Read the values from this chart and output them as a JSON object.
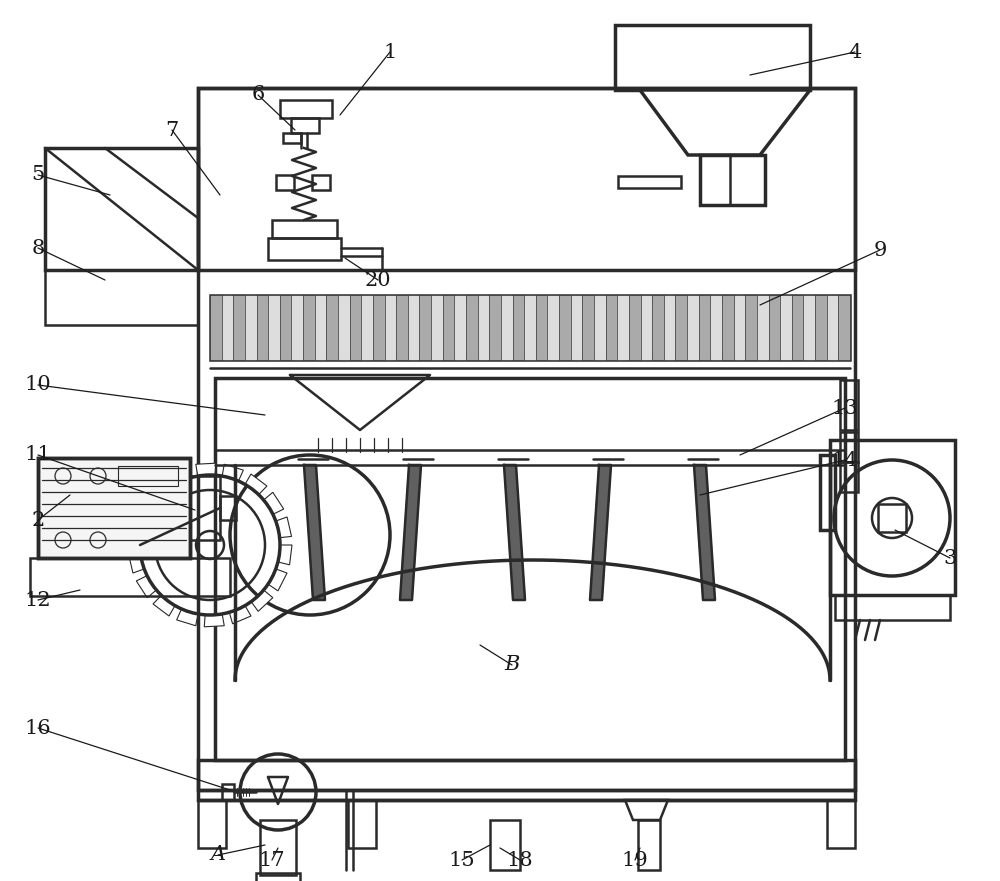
{
  "bg": "#ffffff",
  "lc": "#2a2a2a",
  "lw": 1.8,
  "lw2": 2.5,
  "annotations": [
    [
      "1",
      390,
      52,
      340,
      115
    ],
    [
      "4",
      855,
      52,
      750,
      75
    ],
    [
      "5",
      38,
      175,
      110,
      195
    ],
    [
      "6",
      258,
      95,
      295,
      130
    ],
    [
      "7",
      172,
      130,
      220,
      195
    ],
    [
      "8",
      38,
      248,
      105,
      280
    ],
    [
      "9",
      880,
      250,
      760,
      305
    ],
    [
      "10",
      38,
      385,
      265,
      415
    ],
    [
      "11",
      38,
      455,
      195,
      510
    ],
    [
      "2",
      38,
      520,
      70,
      495
    ],
    [
      "12",
      38,
      600,
      80,
      590
    ],
    [
      "13",
      845,
      408,
      740,
      455
    ],
    [
      "14",
      845,
      460,
      700,
      495
    ],
    [
      "20",
      378,
      280,
      345,
      258
    ],
    [
      "16",
      38,
      728,
      230,
      790
    ],
    [
      "A",
      218,
      855,
      265,
      845
    ],
    [
      "17",
      272,
      860,
      278,
      848
    ],
    [
      "15",
      462,
      860,
      490,
      845
    ],
    [
      "18",
      520,
      860,
      500,
      848
    ],
    [
      "19",
      635,
      860,
      640,
      848
    ],
    [
      "3",
      950,
      558,
      895,
      530
    ],
    [
      "B",
      512,
      665,
      480,
      645
    ]
  ]
}
